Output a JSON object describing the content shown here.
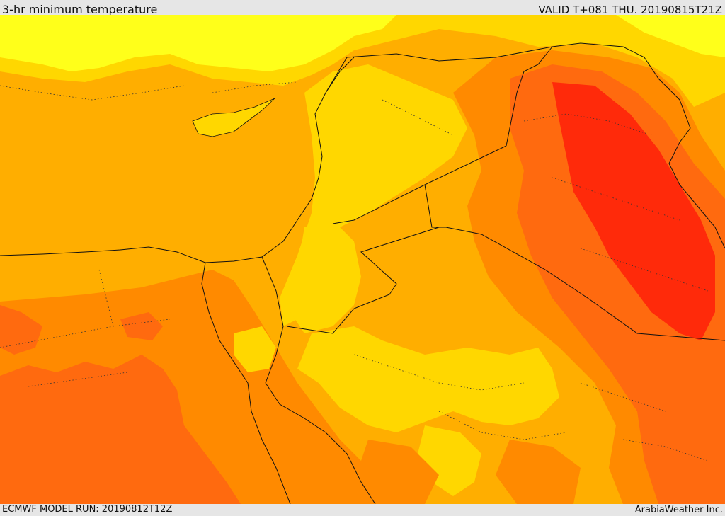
{
  "header": {
    "title": "3-hr minimum temperature",
    "valid": "VALID T+081 THU. 20190815T21Z"
  },
  "footer": {
    "model_run": "ECMWF MODEL RUN: 20190812T12Z",
    "credit": "ArabiaWeather Inc."
  },
  "map": {
    "palette": {
      "cool": "#ffff1a",
      "mild": "#ffd700",
      "warm": "#ffae00",
      "hot": "#ff8a00",
      "hotter": "#ff6a0f",
      "hottest": "#ff2a0a",
      "border": "#111111"
    }
  }
}
